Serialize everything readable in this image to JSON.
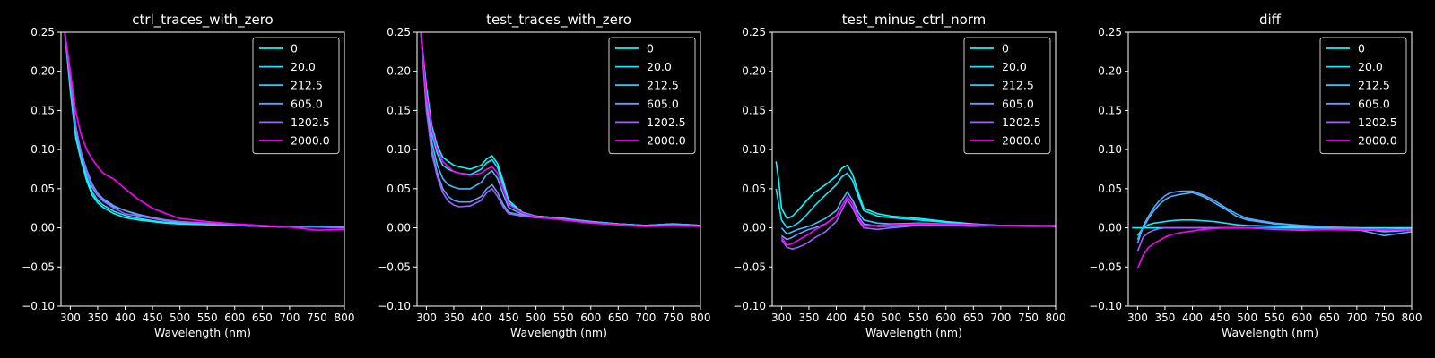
{
  "figure": {
    "background": "#000000",
    "foreground": "#ffffff"
  },
  "chart_data": [
    {
      "type": "line",
      "title": "ctrl_traces_with_zero",
      "xlabel": "Wavelength (nm)",
      "ylabel": "",
      "xlim": [
        283,
        800
      ],
      "ylim": [
        -0.1,
        0.25
      ],
      "xticks": [
        "300",
        "350",
        "400",
        "450",
        "500",
        "550",
        "600",
        "650",
        "700",
        "750",
        "800"
      ],
      "yticks": [
        "−0.10",
        "−0.05",
        "0.00",
        "0.05",
        "0.10",
        "0.15",
        "0.20",
        "0.25"
      ],
      "grid": false,
      "legend_position": "top-right",
      "x": [
        290,
        300,
        310,
        320,
        330,
        340,
        350,
        360,
        380,
        400,
        425,
        450,
        475,
        500,
        550,
        600,
        650,
        700,
        750,
        800
      ],
      "series": [
        {
          "name": "0",
          "color": "#00ffff",
          "values": [
            0.25,
            0.175,
            0.115,
            0.085,
            0.06,
            0.042,
            0.032,
            0.026,
            0.018,
            0.013,
            0.01,
            0.008,
            0.006,
            0.005,
            0.004,
            0.003,
            0.002,
            0.001,
            0.002,
            0.001
          ]
        },
        {
          "name": "20.0",
          "color": "#1ae5ff",
          "values": [
            0.25,
            0.18,
            0.12,
            0.088,
            0.064,
            0.046,
            0.035,
            0.029,
            0.021,
            0.016,
            0.012,
            0.009,
            0.007,
            0.006,
            0.005,
            0.003,
            0.002,
            0.001,
            0.002,
            0.001
          ]
        },
        {
          "name": "212.5",
          "color": "#40bfff",
          "values": [
            0.25,
            0.185,
            0.125,
            0.092,
            0.07,
            0.052,
            0.041,
            0.035,
            0.027,
            0.022,
            0.016,
            0.012,
            0.009,
            0.007,
            0.005,
            0.003,
            0.002,
            0.001,
            0.002,
            0.001
          ]
        },
        {
          "name": "605.0",
          "color": "#60a0ff",
          "values": [
            0.25,
            0.19,
            0.13,
            0.096,
            0.074,
            0.056,
            0.044,
            0.037,
            0.028,
            0.022,
            0.017,
            0.013,
            0.01,
            0.008,
            0.005,
            0.003,
            0.002,
            0.001,
            0.001,
            0.001
          ]
        },
        {
          "name": "1202.5",
          "color": "#a060ff",
          "values": [
            0.25,
            0.19,
            0.13,
            0.095,
            0.072,
            0.054,
            0.042,
            0.034,
            0.025,
            0.018,
            0.015,
            0.012,
            0.01,
            0.008,
            0.006,
            0.004,
            0.002,
            0.001,
            0.001,
            0.0
          ]
        },
        {
          "name": "2000.0",
          "color": "#ff00ff",
          "values": [
            0.25,
            0.2,
            0.148,
            0.118,
            0.1,
            0.088,
            0.078,
            0.07,
            0.062,
            0.05,
            0.036,
            0.025,
            0.018,
            0.012,
            0.008,
            0.005,
            0.003,
            0.001,
            -0.003,
            -0.002
          ]
        }
      ]
    },
    {
      "type": "line",
      "title": "test_traces_with_zero",
      "xlabel": "Wavelength (nm)",
      "ylabel": "",
      "xlim": [
        283,
        800
      ],
      "ylim": [
        -0.1,
        0.25
      ],
      "xticks": [
        "300",
        "350",
        "400",
        "450",
        "500",
        "550",
        "600",
        "650",
        "700",
        "750",
        "800"
      ],
      "yticks": [
        "−0.10",
        "−0.05",
        "0.00",
        "0.05",
        "0.10",
        "0.15",
        "0.20",
        "0.25"
      ],
      "grid": false,
      "legend_position": "top-right",
      "x": [
        290,
        300,
        310,
        320,
        330,
        340,
        350,
        360,
        380,
        400,
        410,
        420,
        430,
        440,
        450,
        475,
        500,
        550,
        600,
        650,
        700,
        750,
        800
      ],
      "series": [
        {
          "name": "0",
          "color": "#00ffff",
          "values": [
            0.25,
            0.18,
            0.13,
            0.105,
            0.09,
            0.085,
            0.08,
            0.078,
            0.075,
            0.08,
            0.088,
            0.092,
            0.082,
            0.06,
            0.035,
            0.02,
            0.015,
            0.012,
            0.008,
            0.005,
            0.003,
            0.005,
            0.003
          ]
        },
        {
          "name": "20.0",
          "color": "#1ae5ff",
          "values": [
            0.25,
            0.17,
            0.12,
            0.095,
            0.08,
            0.075,
            0.072,
            0.07,
            0.068,
            0.075,
            0.083,
            0.087,
            0.077,
            0.055,
            0.032,
            0.019,
            0.015,
            0.012,
            0.008,
            0.005,
            0.003,
            0.005,
            0.003
          ]
        },
        {
          "name": "212.5",
          "color": "#40bfff",
          "values": [
            0.25,
            0.16,
            0.11,
            0.08,
            0.063,
            0.055,
            0.052,
            0.05,
            0.05,
            0.058,
            0.068,
            0.073,
            0.063,
            0.043,
            0.026,
            0.017,
            0.015,
            0.012,
            0.008,
            0.005,
            0.003,
            0.005,
            0.003
          ]
        },
        {
          "name": "605.0",
          "color": "#60a0ff",
          "values": [
            0.25,
            0.155,
            0.1,
            0.07,
            0.05,
            0.04,
            0.035,
            0.033,
            0.033,
            0.04,
            0.05,
            0.055,
            0.045,
            0.03,
            0.02,
            0.016,
            0.014,
            0.011,
            0.007,
            0.004,
            0.002,
            0.004,
            0.002
          ]
        },
        {
          "name": "1202.5",
          "color": "#a060ff",
          "values": [
            0.25,
            0.15,
            0.095,
            0.065,
            0.045,
            0.034,
            0.029,
            0.027,
            0.028,
            0.035,
            0.045,
            0.05,
            0.04,
            0.027,
            0.018,
            0.015,
            0.013,
            0.011,
            0.007,
            0.004,
            0.002,
            0.003,
            0.002
          ]
        },
        {
          "name": "2000.0",
          "color": "#ff00ff",
          "values": [
            0.25,
            0.17,
            0.125,
            0.1,
            0.085,
            0.078,
            0.072,
            0.07,
            0.067,
            0.07,
            0.075,
            0.078,
            0.07,
            0.05,
            0.03,
            0.019,
            0.014,
            0.01,
            0.006,
            0.004,
            0.002,
            0.003,
            0.002
          ]
        }
      ]
    },
    {
      "type": "line",
      "title": "test_minus_ctrl_norm",
      "xlabel": "Wavelength (nm)",
      "ylabel": "",
      "xlim": [
        283,
        800
      ],
      "ylim": [
        -0.1,
        0.25
      ],
      "xticks": [
        "300",
        "350",
        "400",
        "450",
        "500",
        "550",
        "600",
        "650",
        "700",
        "750",
        "800"
      ],
      "yticks": [
        "−0.10",
        "−0.05",
        "0.00",
        "0.05",
        "0.10",
        "0.15",
        "0.20",
        "0.25"
      ],
      "grid": false,
      "legend_position": "top-right",
      "x": [
        290,
        295,
        300,
        310,
        320,
        330,
        340,
        350,
        360,
        380,
        400,
        410,
        420,
        430,
        440,
        450,
        475,
        500,
        550,
        600,
        650,
        700,
        750,
        800
      ],
      "series": [
        {
          "name": "0",
          "color": "#00ffff",
          "values": [
            0.085,
            0.06,
            0.025,
            0.012,
            0.015,
            0.022,
            0.03,
            0.038,
            0.045,
            0.055,
            0.066,
            0.076,
            0.08,
            0.068,
            0.045,
            0.025,
            0.018,
            0.015,
            0.012,
            0.008,
            0.005,
            0.003,
            0.003,
            0.002
          ]
        },
        {
          "name": "20.0",
          "color": "#1ae5ff",
          "values": [
            0.05,
            0.03,
            0.01,
            0.0,
            0.002,
            0.006,
            0.012,
            0.02,
            0.028,
            0.042,
            0.055,
            0.065,
            0.07,
            0.06,
            0.04,
            0.022,
            0.015,
            0.013,
            0.01,
            0.007,
            0.004,
            0.003,
            0.003,
            0.002
          ]
        },
        {
          "name": "212.5",
          "color": "#40bfff",
          "values": [
            null,
            null,
            0.0,
            -0.008,
            -0.005,
            -0.002,
            0.0,
            0.002,
            0.005,
            0.012,
            0.022,
            0.035,
            0.046,
            0.035,
            0.02,
            0.01,
            0.006,
            0.005,
            0.006,
            0.005,
            0.004,
            0.003,
            0.003,
            0.002
          ]
        },
        {
          "name": "605.0",
          "color": "#60a0ff",
          "values": [
            null,
            null,
            -0.01,
            -0.015,
            -0.012,
            -0.008,
            -0.005,
            -0.002,
            0.0,
            0.005,
            0.015,
            0.028,
            0.04,
            0.03,
            0.015,
            0.005,
            0.002,
            0.002,
            0.004,
            0.004,
            0.003,
            0.003,
            0.003,
            0.002
          ]
        },
        {
          "name": "1202.5",
          "color": "#a060ff",
          "values": [
            null,
            null,
            -0.015,
            -0.025,
            -0.027,
            -0.025,
            -0.022,
            -0.018,
            -0.013,
            -0.005,
            0.008,
            0.022,
            0.036,
            0.025,
            0.01,
            0.0,
            -0.002,
            0.0,
            0.003,
            0.003,
            0.002,
            0.003,
            0.002,
            0.002
          ]
        },
        {
          "name": "2000.0",
          "color": "#ff00ff",
          "values": [
            null,
            null,
            -0.012,
            -0.022,
            -0.02,
            -0.016,
            -0.012,
            -0.008,
            -0.003,
            0.005,
            0.015,
            0.028,
            0.04,
            0.03,
            0.012,
            0.003,
            0.003,
            0.004,
            0.005,
            0.005,
            0.004,
            0.003,
            0.003,
            0.003
          ]
        }
      ]
    },
    {
      "type": "line",
      "title": "diff",
      "xlabel": "Wavelength (nm)",
      "ylabel": "",
      "xlim": [
        283,
        800
      ],
      "ylim": [
        -0.1,
        0.25
      ],
      "xticks": [
        "300",
        "350",
        "400",
        "450",
        "500",
        "550",
        "600",
        "650",
        "700",
        "750",
        "800"
      ],
      "yticks": [
        "−0.10",
        "−0.05",
        "0.00",
        "0.05",
        "0.10",
        "0.15",
        "0.20",
        "0.25"
      ],
      "grid": false,
      "legend_position": "top-right",
      "x": [
        290,
        300,
        310,
        320,
        330,
        340,
        350,
        360,
        380,
        400,
        420,
        440,
        460,
        480,
        500,
        550,
        600,
        650,
        700,
        750,
        800
      ],
      "series": [
        {
          "name": "0",
          "color": "#00ffff",
          "values": [
            0.0,
            0.0,
            0.0,
            0.0,
            0.0,
            0.0,
            0.0,
            0.0,
            0.0,
            0.0,
            0.0,
            0.0,
            0.0,
            0.0,
            0.0,
            0.0,
            0.0,
            0.0,
            0.0,
            0.0,
            0.0
          ]
        },
        {
          "name": "20.0",
          "color": "#1ae5ff",
          "values": [
            null,
            -0.01,
            0.0,
            0.004,
            0.006,
            0.007,
            0.008,
            0.009,
            0.01,
            0.01,
            0.009,
            0.008,
            0.006,
            0.004,
            0.003,
            0.002,
            0.001,
            0.0,
            0.0,
            -0.002,
            -0.001
          ]
        },
        {
          "name": "212.5",
          "color": "#40bfff",
          "values": [
            null,
            -0.015,
            0.0,
            0.012,
            0.022,
            0.03,
            0.036,
            0.04,
            0.043,
            0.045,
            0.04,
            0.032,
            0.024,
            0.015,
            0.01,
            0.005,
            0.003,
            0.001,
            0.0,
            -0.005,
            -0.003
          ]
        },
        {
          "name": "605.0",
          "color": "#60a0ff",
          "values": [
            null,
            -0.02,
            0.002,
            0.015,
            0.026,
            0.035,
            0.041,
            0.045,
            0.047,
            0.047,
            0.042,
            0.035,
            0.026,
            0.018,
            0.012,
            0.006,
            0.003,
            0.001,
            -0.002,
            -0.01,
            -0.005
          ]
        },
        {
          "name": "1202.5",
          "color": "#a060ff",
          "values": [
            null,
            -0.03,
            -0.012,
            -0.006,
            -0.003,
            -0.001,
            0.0,
            0.0,
            0.0,
            0.0,
            0.0,
            0.0,
            0.0,
            0.0,
            0.0,
            -0.002,
            -0.003,
            -0.002,
            -0.003,
            -0.003,
            -0.002
          ]
        },
        {
          "name": "2000.0",
          "color": "#ff00ff",
          "values": [
            null,
            -0.052,
            -0.035,
            -0.025,
            -0.02,
            -0.016,
            -0.012,
            -0.009,
            -0.006,
            -0.004,
            -0.002,
            -0.001,
            0.0,
            0.0,
            0.0,
            -0.001,
            -0.002,
            -0.002,
            -0.002,
            -0.002,
            -0.003
          ]
        }
      ]
    }
  ]
}
